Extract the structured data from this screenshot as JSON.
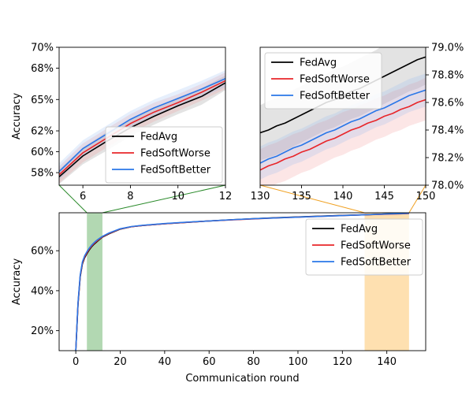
{
  "chart_data": [
    {
      "id": "zoom_early",
      "type": "line",
      "xlim": [
        5,
        12
      ],
      "ylim": [
        56.8,
        70
      ],
      "ylabel": "Accuracy",
      "xticks": [
        6,
        8,
        10,
        12
      ],
      "yticks": [
        58,
        60,
        62,
        65,
        68,
        70
      ],
      "ytick_labels": [
        "58%",
        "60%",
        "62%",
        "65%",
        "68%",
        "70%"
      ],
      "legend_position": "lower-right",
      "series": [
        {
          "name": "FedAvg",
          "color": "#000000",
          "band_color": "#7f7f7f",
          "x": [
            5,
            6,
            7,
            8,
            9,
            10,
            11,
            12
          ],
          "y": [
            57.6,
            59.6,
            61.0,
            62.3,
            63.4,
            64.4,
            65.3,
            66.6
          ],
          "lower": [
            56.9,
            58.8,
            60.1,
            61.5,
            62.6,
            63.6,
            64.5,
            65.9
          ],
          "upper": [
            58.3,
            60.4,
            61.9,
            63.1,
            64.2,
            65.2,
            66.1,
            67.3
          ]
        },
        {
          "name": "FedSoftWorse",
          "color": "#e8262a",
          "band_color": "#f28c8c",
          "x": [
            5,
            6,
            7,
            8,
            9,
            10,
            11,
            12
          ],
          "y": [
            57.8,
            59.9,
            61.3,
            62.7,
            63.8,
            64.7,
            65.7,
            66.8
          ],
          "lower": [
            57.0,
            59.0,
            60.4,
            61.8,
            62.9,
            63.9,
            64.9,
            66.0
          ],
          "upper": [
            58.6,
            60.8,
            62.2,
            63.6,
            64.7,
            65.5,
            66.5,
            67.6
          ]
        },
        {
          "name": "FedSoftBetter",
          "color": "#2a77e8",
          "band_color": "#8fb8f0",
          "x": [
            5,
            6,
            7,
            8,
            9,
            10,
            11,
            12
          ],
          "y": [
            58.1,
            60.3,
            61.7,
            63.1,
            64.2,
            65.1,
            66.0,
            67.0
          ],
          "lower": [
            57.3,
            59.5,
            60.9,
            62.3,
            63.4,
            64.3,
            65.2,
            66.2
          ],
          "upper": [
            58.9,
            61.1,
            62.5,
            63.9,
            65.0,
            65.9,
            66.8,
            67.8
          ]
        }
      ]
    },
    {
      "id": "zoom_late",
      "type": "line",
      "xlim": [
        130,
        150
      ],
      "ylim": [
        78.0,
        79.0
      ],
      "ylabel": "",
      "y_axis_side": "right",
      "xticks": [
        130,
        135,
        140,
        145,
        150
      ],
      "yticks": [
        78.0,
        78.2,
        78.4,
        78.6,
        78.8,
        79.0
      ],
      "ytick_labels": [
        "78.0%",
        "78.2%",
        "78.4%",
        "78.6%",
        "78.8%",
        "79.0%"
      ],
      "legend_position": "upper-left",
      "series": [
        {
          "name": "FedAvg",
          "color": "#000000",
          "band_color": "#7f7f7f",
          "x": [
            130,
            131,
            132,
            133,
            134,
            135,
            136,
            137,
            138,
            139,
            140,
            141,
            142,
            143,
            144,
            145,
            146,
            147,
            148,
            149,
            150
          ],
          "y": [
            78.38,
            78.4,
            78.43,
            78.45,
            78.48,
            78.51,
            78.54,
            78.57,
            78.6,
            78.62,
            78.65,
            78.68,
            78.7,
            78.73,
            78.76,
            78.79,
            78.82,
            78.85,
            78.88,
            78.91,
            78.93
          ],
          "lower": [
            78.18,
            78.2,
            78.22,
            78.25,
            78.28,
            78.31,
            78.34,
            78.37,
            78.4,
            78.42,
            78.45,
            78.48,
            78.5,
            78.53,
            78.56,
            78.59,
            78.62,
            78.65,
            78.68,
            78.7,
            78.73
          ],
          "upper": [
            78.58,
            78.61,
            78.63,
            78.66,
            78.69,
            78.72,
            78.75,
            78.78,
            78.81,
            78.84,
            78.86,
            78.89,
            78.92,
            78.95,
            78.98,
            79.02,
            79.05,
            79.08,
            79.11,
            79.14,
            79.16
          ]
        },
        {
          "name": "FedSoftWorse",
          "color": "#e8262a",
          "band_color": "#f28c8c",
          "x": [
            130,
            131,
            132,
            133,
            134,
            135,
            136,
            137,
            138,
            139,
            140,
            141,
            142,
            143,
            144,
            145,
            146,
            147,
            148,
            149,
            150
          ],
          "y": [
            78.11,
            78.14,
            78.16,
            78.19,
            78.21,
            78.24,
            78.26,
            78.29,
            78.32,
            78.34,
            78.37,
            78.4,
            78.42,
            78.45,
            78.47,
            78.5,
            78.52,
            78.55,
            78.57,
            78.6,
            78.62
          ],
          "lower": [
            77.96,
            77.98,
            78.01,
            78.03,
            78.06,
            78.09,
            78.11,
            78.14,
            78.17,
            78.2,
            78.22,
            78.25,
            78.27,
            78.3,
            78.33,
            78.35,
            78.38,
            78.4,
            78.43,
            78.45,
            78.47
          ],
          "upper": [
            78.26,
            78.29,
            78.31,
            78.34,
            78.37,
            78.39,
            78.42,
            78.45,
            78.47,
            78.5,
            78.53,
            78.55,
            78.58,
            78.6,
            78.63,
            78.65,
            78.68,
            78.7,
            78.73,
            78.75,
            78.78
          ]
        },
        {
          "name": "FedSoftBetter",
          "color": "#2a77e8",
          "band_color": "#8fb8f0",
          "x": [
            130,
            131,
            132,
            133,
            134,
            135,
            136,
            137,
            138,
            139,
            140,
            141,
            142,
            143,
            144,
            145,
            146,
            147,
            148,
            149,
            150
          ],
          "y": [
            78.16,
            78.19,
            78.21,
            78.24,
            78.27,
            78.29,
            78.32,
            78.35,
            78.38,
            78.4,
            78.43,
            78.46,
            78.48,
            78.51,
            78.54,
            78.56,
            78.59,
            78.62,
            78.65,
            78.67,
            78.69
          ],
          "lower": [
            78.04,
            78.07,
            78.09,
            78.12,
            78.15,
            78.17,
            78.2,
            78.23,
            78.26,
            78.28,
            78.31,
            78.34,
            78.36,
            78.39,
            78.42,
            78.44,
            78.47,
            78.5,
            78.53,
            78.55,
            78.57
          ],
          "upper": [
            78.28,
            78.31,
            78.33,
            78.36,
            78.39,
            78.41,
            78.44,
            78.47,
            78.5,
            78.52,
            78.55,
            78.58,
            78.6,
            78.63,
            78.66,
            78.68,
            78.71,
            78.74,
            78.77,
            78.79,
            78.81
          ]
        }
      ]
    },
    {
      "id": "full",
      "type": "line",
      "xlim": [
        -7.5,
        157.5
      ],
      "ylim": [
        10,
        79
      ],
      "xlabel": "Communication round",
      "ylabel": "Accuracy",
      "xticks": [
        0,
        20,
        40,
        60,
        80,
        100,
        120,
        140
      ],
      "yticks": [
        20,
        40,
        60
      ],
      "ytick_labels": [
        "20%",
        "40%",
        "60%"
      ],
      "legend_position": "upper-right",
      "highlight_spans": [
        {
          "x0": 5,
          "x1": 12,
          "color": "#b2d8b2"
        },
        {
          "x0": 130,
          "x1": 150,
          "color": "#fee0b0"
        }
      ],
      "zoom_connector_colors": {
        "early": "#2a8a2a",
        "late": "#f0a020"
      },
      "series": [
        {
          "name": "FedAvg",
          "color": "#000000",
          "x": [
            0,
            1,
            2,
            3,
            4,
            5,
            6,
            7,
            8,
            9,
            10,
            12,
            15,
            20,
            25,
            30,
            40,
            50,
            60,
            70,
            80,
            90,
            100,
            110,
            120,
            130,
            140,
            150
          ],
          "y": [
            10,
            33,
            47,
            53.5,
            56.5,
            58.5,
            60.3,
            61.8,
            63.0,
            64.0,
            65.0,
            66.8,
            68.5,
            70.8,
            72.0,
            72.6,
            73.5,
            74.2,
            74.9,
            75.5,
            76.0,
            76.5,
            76.9,
            77.3,
            77.7,
            78.0,
            78.4,
            78.9
          ]
        },
        {
          "name": "FedSoftWorse",
          "color": "#e8262a",
          "x": [
            0,
            1,
            2,
            3,
            4,
            5,
            6,
            7,
            8,
            9,
            10,
            12,
            15,
            20,
            25,
            30,
            40,
            50,
            60,
            70,
            80,
            90,
            100,
            110,
            120,
            130,
            140,
            150
          ],
          "y": [
            10,
            33.5,
            47.5,
            54,
            57,
            59,
            60.8,
            62.2,
            63.4,
            64.4,
            65.3,
            67.0,
            68.7,
            70.9,
            72.0,
            72.6,
            73.5,
            74.2,
            74.9,
            75.4,
            75.9,
            76.4,
            76.8,
            77.2,
            77.6,
            78.0,
            78.3,
            78.6
          ]
        },
        {
          "name": "FedSoftBetter",
          "color": "#2a77e8",
          "x": [
            0,
            1,
            2,
            3,
            4,
            5,
            6,
            7,
            8,
            9,
            10,
            12,
            15,
            20,
            25,
            30,
            40,
            50,
            60,
            70,
            80,
            90,
            100,
            110,
            120,
            130,
            140,
            150
          ],
          "y": [
            10,
            34,
            48,
            54.5,
            57.5,
            59.5,
            61.2,
            62.6,
            63.8,
            64.8,
            65.7,
            67.2,
            68.9,
            71.0,
            72.1,
            72.7,
            73.6,
            74.3,
            74.9,
            75.5,
            76.0,
            76.4,
            76.8,
            77.2,
            77.6,
            78.0,
            78.4,
            78.7
          ]
        }
      ]
    }
  ]
}
